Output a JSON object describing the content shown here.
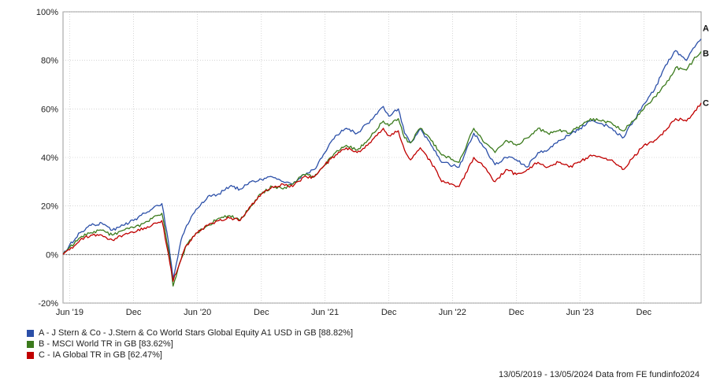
{
  "chart_data": {
    "type": "line",
    "title": "",
    "xlabel": "",
    "ylabel": "",
    "ylim": [
      -20,
      100
    ],
    "yticks": [
      {
        "value": -20,
        "label": "-20%"
      },
      {
        "value": 0,
        "label": "0%"
      },
      {
        "value": 20,
        "label": "20%"
      },
      {
        "value": 40,
        "label": "40%"
      },
      {
        "value": 60,
        "label": "60%"
      },
      {
        "value": 80,
        "label": "80%"
      },
      {
        "value": 100,
        "label": "100%"
      }
    ],
    "xlim": [
      "2019-05-13",
      "2024-05-13"
    ],
    "xticks": [
      {
        "date": "2019-06-01",
        "label": "Jun '19"
      },
      {
        "date": "2019-12-01",
        "label": "Dec"
      },
      {
        "date": "2020-06-01",
        "label": "Jun '20"
      },
      {
        "date": "2020-12-01",
        "label": "Dec"
      },
      {
        "date": "2021-06-01",
        "label": "Jun '21"
      },
      {
        "date": "2021-12-01",
        "label": "Dec"
      },
      {
        "date": "2022-06-01",
        "label": "Jun '22"
      },
      {
        "date": "2022-12-01",
        "label": "Dec"
      },
      {
        "date": "2023-06-01",
        "label": "Jun '23"
      },
      {
        "date": "2023-12-01",
        "label": "Dec"
      }
    ],
    "grid": true,
    "legend_position": "bottom",
    "series": [
      {
        "letter": "A",
        "name": "A - J Stern & Co - J.Stern & Co World Stars Global Equity A1 USD in GB [88.82%]",
        "color": "#2b4fa8",
        "points": [
          [
            "2019-05-13",
            0
          ],
          [
            "2019-06-01",
            4
          ],
          [
            "2019-07-01",
            9
          ],
          [
            "2019-08-01",
            12
          ],
          [
            "2019-09-01",
            13
          ],
          [
            "2019-10-01",
            10
          ],
          [
            "2019-11-01",
            12
          ],
          [
            "2019-12-01",
            14
          ],
          [
            "2020-01-01",
            17
          ],
          [
            "2020-02-01",
            20
          ],
          [
            "2020-02-20",
            21
          ],
          [
            "2020-03-10",
            5
          ],
          [
            "2020-03-23",
            -10
          ],
          [
            "2020-04-15",
            6
          ],
          [
            "2020-05-01",
            12
          ],
          [
            "2020-06-01",
            19
          ],
          [
            "2020-07-01",
            24
          ],
          [
            "2020-08-01",
            25
          ],
          [
            "2020-09-01",
            28
          ],
          [
            "2020-10-01",
            27
          ],
          [
            "2020-11-01",
            30
          ],
          [
            "2020-12-01",
            31
          ],
          [
            "2021-01-01",
            32
          ],
          [
            "2021-02-01",
            30
          ],
          [
            "2021-03-01",
            29
          ],
          [
            "2021-04-01",
            33
          ],
          [
            "2021-05-01",
            35
          ],
          [
            "2021-06-01",
            42
          ],
          [
            "2021-07-01",
            49
          ],
          [
            "2021-08-01",
            52
          ],
          [
            "2021-09-01",
            50
          ],
          [
            "2021-10-01",
            54
          ],
          [
            "2021-11-15",
            61
          ],
          [
            "2021-12-01",
            57
          ],
          [
            "2021-12-28",
            60
          ],
          [
            "2022-01-15",
            50
          ],
          [
            "2022-02-01",
            46
          ],
          [
            "2022-03-01",
            52
          ],
          [
            "2022-04-01",
            45
          ],
          [
            "2022-05-01",
            38
          ],
          [
            "2022-06-20",
            36
          ],
          [
            "2022-08-01",
            50
          ],
          [
            "2022-09-01",
            44
          ],
          [
            "2022-10-01",
            37
          ],
          [
            "2022-11-01",
            40
          ],
          [
            "2022-12-01",
            39
          ],
          [
            "2023-01-01",
            36
          ],
          [
            "2023-02-01",
            42
          ],
          [
            "2023-03-01",
            43
          ],
          [
            "2023-04-01",
            47
          ],
          [
            "2023-05-01",
            49
          ],
          [
            "2023-06-01",
            52
          ],
          [
            "2023-07-01",
            55
          ],
          [
            "2023-08-01",
            54
          ],
          [
            "2023-09-01",
            52
          ],
          [
            "2023-10-01",
            48
          ],
          [
            "2023-11-01",
            55
          ],
          [
            "2023-12-01",
            62
          ],
          [
            "2024-01-01",
            68
          ],
          [
            "2024-02-01",
            78
          ],
          [
            "2024-03-01",
            84
          ],
          [
            "2024-04-01",
            80
          ],
          [
            "2024-04-20",
            85
          ],
          [
            "2024-05-13",
            88.82
          ]
        ]
      },
      {
        "letter": "B",
        "name": "B - MSCI World TR in GB [83.62%]",
        "color": "#3b7a1c",
        "points": [
          [
            "2019-05-13",
            0
          ],
          [
            "2019-06-01",
            3
          ],
          [
            "2019-07-01",
            7
          ],
          [
            "2019-08-01",
            9
          ],
          [
            "2019-09-01",
            10
          ],
          [
            "2019-10-01",
            8
          ],
          [
            "2019-11-01",
            10
          ],
          [
            "2019-12-01",
            11
          ],
          [
            "2020-01-01",
            13
          ],
          [
            "2020-02-01",
            16
          ],
          [
            "2020-02-20",
            17
          ],
          [
            "2020-03-10",
            2
          ],
          [
            "2020-03-23",
            -13
          ],
          [
            "2020-04-15",
            -2
          ],
          [
            "2020-05-01",
            4
          ],
          [
            "2020-06-01",
            9
          ],
          [
            "2020-07-01",
            12
          ],
          [
            "2020-08-01",
            15
          ],
          [
            "2020-09-01",
            16
          ],
          [
            "2020-10-01",
            14
          ],
          [
            "2020-11-01",
            20
          ],
          [
            "2020-12-01",
            25
          ],
          [
            "2021-01-01",
            28
          ],
          [
            "2021-02-01",
            27
          ],
          [
            "2021-03-01",
            29
          ],
          [
            "2021-04-01",
            33
          ],
          [
            "2021-05-01",
            32
          ],
          [
            "2021-06-01",
            37
          ],
          [
            "2021-07-01",
            42
          ],
          [
            "2021-08-01",
            45
          ],
          [
            "2021-09-01",
            43
          ],
          [
            "2021-10-01",
            47
          ],
          [
            "2021-11-15",
            55
          ],
          [
            "2021-12-01",
            53
          ],
          [
            "2021-12-28",
            56
          ],
          [
            "2022-01-15",
            48
          ],
          [
            "2022-02-01",
            46
          ],
          [
            "2022-03-01",
            52
          ],
          [
            "2022-04-01",
            47
          ],
          [
            "2022-05-01",
            41
          ],
          [
            "2022-06-20",
            38
          ],
          [
            "2022-08-01",
            52
          ],
          [
            "2022-09-01",
            46
          ],
          [
            "2022-10-01",
            42
          ],
          [
            "2022-11-01",
            47
          ],
          [
            "2022-12-01",
            45
          ],
          [
            "2023-01-01",
            48
          ],
          [
            "2023-02-01",
            52
          ],
          [
            "2023-03-01",
            50
          ],
          [
            "2023-04-01",
            51
          ],
          [
            "2023-05-01",
            50
          ],
          [
            "2023-06-01",
            53
          ],
          [
            "2023-07-01",
            56
          ],
          [
            "2023-08-01",
            55
          ],
          [
            "2023-09-01",
            54
          ],
          [
            "2023-10-01",
            51
          ],
          [
            "2023-11-01",
            55
          ],
          [
            "2023-12-01",
            60
          ],
          [
            "2024-01-01",
            65
          ],
          [
            "2024-02-01",
            70
          ],
          [
            "2024-03-01",
            77
          ],
          [
            "2024-04-01",
            76
          ],
          [
            "2024-04-20",
            80
          ],
          [
            "2024-05-13",
            83.62
          ]
        ]
      },
      {
        "letter": "C",
        "name": "C - IA Global TR in GB [62.47%]",
        "color": "#c00000",
        "points": [
          [
            "2019-05-13",
            0
          ],
          [
            "2019-06-01",
            2
          ],
          [
            "2019-07-01",
            6
          ],
          [
            "2019-08-01",
            8
          ],
          [
            "2019-09-01",
            8
          ],
          [
            "2019-10-01",
            6
          ],
          [
            "2019-11-01",
            8
          ],
          [
            "2019-12-01",
            9
          ],
          [
            "2020-01-01",
            11
          ],
          [
            "2020-02-01",
            13
          ],
          [
            "2020-02-20",
            14
          ],
          [
            "2020-03-10",
            0
          ],
          [
            "2020-03-23",
            -11
          ],
          [
            "2020-04-15",
            -2
          ],
          [
            "2020-05-01",
            4
          ],
          [
            "2020-06-01",
            9
          ],
          [
            "2020-07-01",
            12
          ],
          [
            "2020-08-01",
            14
          ],
          [
            "2020-09-01",
            15
          ],
          [
            "2020-10-01",
            14
          ],
          [
            "2020-11-01",
            20
          ],
          [
            "2020-12-01",
            25
          ],
          [
            "2021-01-01",
            28
          ],
          [
            "2021-02-01",
            29
          ],
          [
            "2021-03-01",
            28
          ],
          [
            "2021-04-01",
            32
          ],
          [
            "2021-05-01",
            32
          ],
          [
            "2021-06-01",
            37
          ],
          [
            "2021-07-01",
            41
          ],
          [
            "2021-08-01",
            44
          ],
          [
            "2021-09-01",
            42
          ],
          [
            "2021-10-01",
            45
          ],
          [
            "2021-11-15",
            52
          ],
          [
            "2021-12-01",
            49
          ],
          [
            "2021-12-28",
            51
          ],
          [
            "2022-01-15",
            43
          ],
          [
            "2022-02-01",
            39
          ],
          [
            "2022-03-01",
            44
          ],
          [
            "2022-04-01",
            38
          ],
          [
            "2022-05-01",
            30
          ],
          [
            "2022-06-20",
            28
          ],
          [
            "2022-08-01",
            40
          ],
          [
            "2022-09-01",
            36
          ],
          [
            "2022-10-01",
            30
          ],
          [
            "2022-11-01",
            35
          ],
          [
            "2022-12-01",
            33
          ],
          [
            "2023-01-01",
            35
          ],
          [
            "2023-02-01",
            38
          ],
          [
            "2023-03-01",
            36
          ],
          [
            "2023-04-01",
            38
          ],
          [
            "2023-05-01",
            36
          ],
          [
            "2023-06-01",
            38
          ],
          [
            "2023-07-01",
            41
          ],
          [
            "2023-08-01",
            40
          ],
          [
            "2023-09-01",
            39
          ],
          [
            "2023-10-01",
            35
          ],
          [
            "2023-11-01",
            40
          ],
          [
            "2023-12-01",
            45
          ],
          [
            "2024-01-01",
            47
          ],
          [
            "2024-02-01",
            51
          ],
          [
            "2024-03-01",
            56
          ],
          [
            "2024-04-01",
            55
          ],
          [
            "2024-04-20",
            58
          ],
          [
            "2024-05-13",
            62.47
          ]
        ]
      }
    ]
  },
  "legend": [
    {
      "text": "A - J Stern & Co - J.Stern & Co World Stars Global Equity A1 USD in GB [88.82%]",
      "color": "#2b4fa8"
    },
    {
      "text": "B - MSCI World TR in GB [83.62%]",
      "color": "#3b7a1c"
    },
    {
      "text": "C - IA Global TR in GB [62.47%]",
      "color": "#c00000"
    }
  ],
  "footer": "13/05/2019 - 13/05/2024 Data from FE fundinfo2024"
}
